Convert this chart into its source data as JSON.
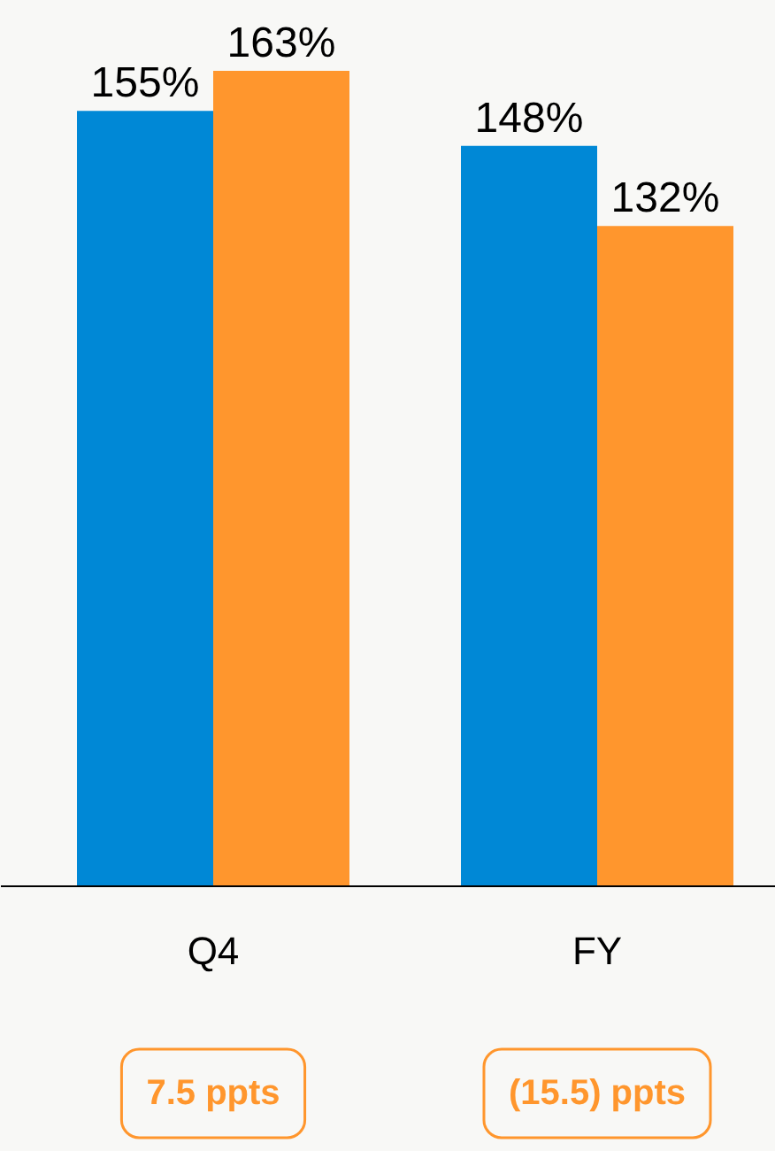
{
  "chart_data": {
    "type": "bar",
    "categories": [
      "Q4",
      "FY"
    ],
    "ylim": [
      0,
      177
    ],
    "series": [
      {
        "color": "#0088d6",
        "values": [
          155,
          148
        ],
        "value_labels": [
          "155%",
          "148%"
        ]
      },
      {
        "color": "#ff962d",
        "values": [
          163,
          132
        ],
        "value_labels": [
          "163%",
          "132%"
        ]
      }
    ],
    "annotations": [
      "7.5 ppts",
      "(15.5) ppts"
    ],
    "grid": false
  }
}
